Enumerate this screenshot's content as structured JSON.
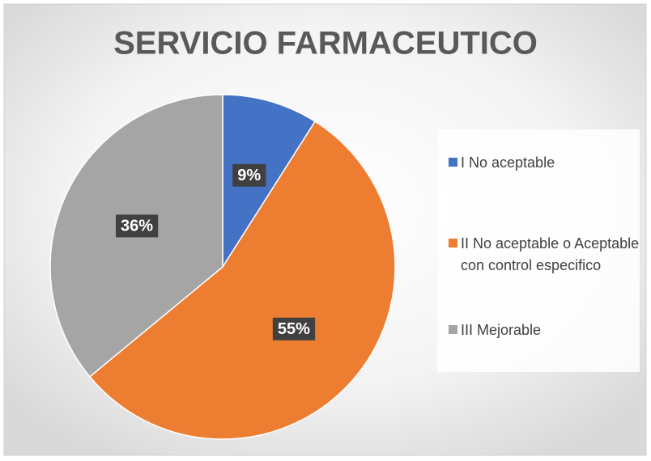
{
  "chart_data": {
    "type": "pie",
    "title": "SERVICIO FARMACEUTICO",
    "categories": [
      "I No aceptable",
      "II No aceptable o Aceptable con control especifico",
      "III Mejorable"
    ],
    "values": [
      9,
      55,
      36
    ],
    "value_labels": [
      "9%",
      "55%",
      "36%"
    ],
    "colors": [
      "#4472c4",
      "#ed7d31",
      "#a5a5a5"
    ],
    "legend": "right"
  }
}
